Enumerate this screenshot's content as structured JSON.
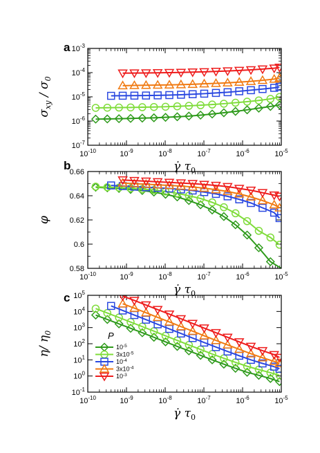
{
  "colors": {
    "p1e-5": "#2e9a1b",
    "p3e-5": "#7fdc3a",
    "p1e-4": "#2a48e0",
    "p3e-4": "#f07a12",
    "p1e-3": "#ee1c1c"
  },
  "chart_data": [
    {
      "panel": "a",
      "type": "line",
      "xscale": "log",
      "yscale": "log",
      "xlim": [
        1e-10,
        1e-05
      ],
      "ylim": [
        1e-07,
        0.001
      ],
      "xlabel": "γ̇ τ0",
      "ylabel": "σxy / σ0",
      "x_tick_labels": [
        "10-10",
        "10-9",
        "10-8",
        "10-7",
        "10-6",
        "10-5"
      ],
      "y_tick_labels": [
        "10-7",
        "10-6",
        "10-5",
        "10-4",
        "10-3"
      ],
      "series": [
        {
          "key": "p1e-5",
          "marker": "diamond",
          "x": [
            1.6e-10,
            3.2e-10,
            6.4e-10,
            1.28e-09,
            2.56e-09,
            5.12e-09,
            1.02e-08,
            2.05e-08,
            4.1e-08,
            8.2e-08,
            1.64e-07,
            3.28e-07,
            6.55e-07,
            1.31e-06,
            2.62e-06,
            5.24e-06,
            9e-06
          ],
          "y": [
            1.2e-06,
            1.22e-06,
            1.25e-06,
            1.28e-06,
            1.32e-06,
            1.36e-06,
            1.42e-06,
            1.5e-06,
            1.6e-06,
            1.75e-06,
            1.95e-06,
            2.2e-06,
            2.5e-06,
            2.9e-06,
            3.4e-06,
            4e-06,
            4.6e-06
          ]
        },
        {
          "key": "p3e-5",
          "marker": "circle",
          "x": [
            1.6e-10,
            3.2e-10,
            6.4e-10,
            1.28e-09,
            2.56e-09,
            5.12e-09,
            1.02e-08,
            2.05e-08,
            4.1e-08,
            8.2e-08,
            1.64e-07,
            3.28e-07,
            6.55e-07,
            1.31e-06,
            2.62e-06,
            5.24e-06,
            9e-06
          ],
          "y": [
            3.5e-06,
            3.55e-06,
            3.6e-06,
            3.65e-06,
            3.72e-06,
            3.8e-06,
            3.9e-06,
            4.05e-06,
            4.25e-06,
            4.5e-06,
            4.8e-06,
            5.2e-06,
            5.7e-06,
            6.3e-06,
            7.1e-06,
            8.2e-06,
            9.8e-06
          ]
        },
        {
          "key": "p1e-4",
          "marker": "square",
          "x": [
            4e-10,
            8e-10,
            1.6e-09,
            3.2e-09,
            6.4e-09,
            1.28e-08,
            2.56e-08,
            5.12e-08,
            1.02e-07,
            2.05e-07,
            4.1e-07,
            8.2e-07,
            1.64e-06,
            3.28e-06,
            6.55e-06,
            9e-06
          ],
          "y": [
            1.1e-05,
            1.11e-05,
            1.12e-05,
            1.13e-05,
            1.15e-05,
            1.18e-05,
            1.22e-05,
            1.28e-05,
            1.35e-05,
            1.45e-05,
            1.55e-05,
            1.7e-05,
            1.88e-05,
            2.1e-05,
            2.35e-05,
            2.6e-05
          ]
        },
        {
          "key": "p3e-4",
          "marker": "triangle-up",
          "x": [
            8e-10,
            1.6e-09,
            3.2e-09,
            6.4e-09,
            1.28e-08,
            2.56e-08,
            5.12e-08,
            1.02e-07,
            2.05e-07,
            4.1e-07,
            8.2e-07,
            1.64e-06,
            3.28e-06,
            6.55e-06,
            9e-06
          ],
          "y": [
            2.9e-05,
            2.95e-05,
            3e-05,
            3.05e-05,
            3.12e-05,
            3.2e-05,
            3.3e-05,
            3.45e-05,
            3.6e-05,
            3.8e-05,
            4.05e-05,
            4.35e-05,
            4.8e-05,
            5.4e-05,
            6e-05
          ]
        },
        {
          "key": "p1e-3",
          "marker": "triangle-down",
          "x": [
            8e-10,
            1.6e-09,
            3.2e-09,
            6.4e-09,
            1.28e-08,
            2.56e-08,
            5.12e-08,
            1.02e-07,
            2.05e-07,
            4.1e-07,
            8.2e-07,
            1.64e-06,
            3.28e-06,
            6.55e-06,
            9e-06
          ],
          "y": [
            9.5e-05,
            9.6e-05,
            9.7e-05,
            9.85e-05,
            0.0001,
            0.000102,
            0.000105,
            0.000108,
            0.000112,
            0.000117,
            0.000123,
            0.00013,
            0.00014,
            0.000152,
            0.000165
          ]
        }
      ]
    },
    {
      "panel": "b",
      "type": "line",
      "xscale": "log",
      "yscale": "linear",
      "xlim": [
        1e-10,
        1e-05
      ],
      "ylim": [
        0.58,
        0.66
      ],
      "xlabel": "γ̇ τ0",
      "ylabel": "φ",
      "x_tick_labels": [
        "10-10",
        "10-9",
        "10-8",
        "10-7",
        "10-6",
        "10-5"
      ],
      "y_tick_labels": [
        "0.58",
        "0.6",
        "0.62",
        "0.64",
        "0.66"
      ],
      "series": [
        {
          "key": "p1e-5",
          "marker": "diamond",
          "x": [
            1.6e-10,
            3.2e-10,
            6.4e-10,
            1.28e-09,
            2.56e-09,
            5.12e-09,
            1.02e-08,
            2.05e-08,
            4.1e-08,
            8.2e-08,
            1.64e-07,
            3.28e-07,
            6.55e-07,
            1.31e-06,
            2.62e-06,
            5.24e-06
          ],
          "y": [
            0.647,
            0.6465,
            0.646,
            0.6452,
            0.6443,
            0.643,
            0.6412,
            0.639,
            0.636,
            0.6325,
            0.6282,
            0.6228,
            0.616,
            0.6075,
            0.597,
            0.5855
          ],
          "line_end": [
            1e-05,
            0.58
          ]
        },
        {
          "key": "p3e-5",
          "marker": "circle",
          "x": [
            1.6e-10,
            3.2e-10,
            6.4e-10,
            1.28e-09,
            2.56e-09,
            5.12e-09,
            1.02e-08,
            2.05e-08,
            4.1e-08,
            8.2e-08,
            1.64e-07,
            3.28e-07,
            6.55e-07,
            1.31e-06,
            2.62e-06,
            5.24e-06,
            9e-06
          ],
          "y": [
            0.6475,
            0.647,
            0.6467,
            0.6462,
            0.6455,
            0.6447,
            0.6435,
            0.642,
            0.64,
            0.6377,
            0.6345,
            0.6305,
            0.6255,
            0.619,
            0.611,
            0.6055,
            0.5995
          ]
        },
        {
          "key": "p1e-4",
          "marker": "square",
          "x": [
            4e-10,
            8e-10,
            1.6e-09,
            3.2e-09,
            6.4e-09,
            1.28e-08,
            2.56e-08,
            5.12e-08,
            1.02e-07,
            2.05e-07,
            4.1e-07,
            8.2e-07,
            1.64e-06,
            3.28e-06,
            6.55e-06,
            9e-06
          ],
          "y": [
            0.6485,
            0.648,
            0.6475,
            0.647,
            0.6465,
            0.646,
            0.6452,
            0.6443,
            0.643,
            0.6415,
            0.6395,
            0.637,
            0.634,
            0.63,
            0.626,
            0.6215
          ]
        },
        {
          "key": "p3e-4",
          "marker": "triangle-up",
          "x": [
            8e-10,
            1.6e-09,
            3.2e-09,
            6.4e-09,
            1.28e-08,
            2.56e-08,
            5.12e-08,
            1.02e-07,
            2.05e-07,
            4.1e-07,
            8.2e-07,
            1.64e-06,
            3.28e-06,
            6.55e-06,
            9e-06
          ],
          "y": [
            0.6505,
            0.65,
            0.6495,
            0.649,
            0.6485,
            0.648,
            0.6472,
            0.6463,
            0.645,
            0.6435,
            0.6415,
            0.639,
            0.636,
            0.6325,
            0.63
          ]
        },
        {
          "key": "p1e-3",
          "marker": "triangle-down",
          "x": [
            8e-10,
            1.6e-09,
            3.2e-09,
            6.4e-09,
            1.28e-08,
            2.56e-08,
            5.12e-08,
            1.02e-07,
            2.05e-07,
            4.1e-07,
            8.2e-07,
            1.64e-06,
            3.28e-06,
            6.55e-06,
            9e-06
          ],
          "y": [
            0.653,
            0.6525,
            0.652,
            0.6515,
            0.651,
            0.6505,
            0.65,
            0.6493,
            0.6485,
            0.6475,
            0.646,
            0.6445,
            0.6425,
            0.6405,
            0.6395
          ]
        }
      ]
    },
    {
      "panel": "c",
      "type": "line",
      "xscale": "log",
      "yscale": "log",
      "xlim": [
        1e-10,
        1e-05
      ],
      "ylim": [
        0.1,
        100000
      ],
      "xlabel": "γ̇ τ0",
      "ylabel": "η/ η0",
      "x_tick_labels": [
        "10-10",
        "10-9",
        "10-8",
        "10-7",
        "10-6",
        "10-5"
      ],
      "y_tick_labels": [
        "10-1",
        "100",
        "101",
        "102",
        "103",
        "104",
        "105"
      ],
      "legend": {
        "title": "P",
        "placement": "left",
        "entries": [
          {
            "key": "p1e-5",
            "label": "10-5"
          },
          {
            "key": "p3e-5",
            "label": "3x10-5"
          },
          {
            "key": "p1e-4",
            "label": "10-4"
          },
          {
            "key": "p3e-4",
            "label": "3x10-4"
          },
          {
            "key": "p1e-3",
            "label": "10-3"
          }
        ]
      },
      "series": [
        {
          "key": "p1e-5",
          "marker": "diamond",
          "x": [
            1.6e-10,
            3.2e-10,
            6.4e-10,
            1.28e-09,
            2.56e-09,
            5.12e-09,
            1.02e-08,
            2.05e-08,
            4.1e-08,
            8.2e-08,
            1.64e-07,
            3.28e-07,
            6.55e-07,
            1.31e-06,
            2.62e-06,
            5.24e-06,
            9e-06
          ],
          "y": [
            6000,
            3200,
            1700,
            900,
            480,
            250,
            130,
            68,
            36,
            19,
            10,
            5.4,
            3.0,
            1.7,
            1.1,
            0.7,
            0.45
          ]
        },
        {
          "key": "p3e-5",
          "marker": "circle",
          "x": [
            1.6e-10,
            3.2e-10,
            6.4e-10,
            1.28e-09,
            2.56e-09,
            5.12e-09,
            1.02e-08,
            2.05e-08,
            4.1e-08,
            8.2e-08,
            1.64e-07,
            3.28e-07,
            6.55e-07,
            1.31e-06,
            2.62e-06,
            5.24e-06,
            9e-06
          ],
          "y": [
            15000,
            8000,
            4200,
            2200,
            1150,
            600,
            310,
            160,
            84,
            44,
            23,
            12.5,
            7,
            4,
            2.5,
            1.6,
            1.1
          ]
        },
        {
          "key": "p1e-4",
          "marker": "square",
          "x": [
            4e-10,
            8e-10,
            1.6e-09,
            3.2e-09,
            6.4e-09,
            1.28e-08,
            2.56e-08,
            5.12e-08,
            1.02e-07,
            2.05e-07,
            4.1e-07,
            8.2e-07,
            1.64e-06,
            3.28e-06,
            6.55e-06,
            9e-06
          ],
          "y": [
            22000,
            11500,
            6000,
            3100,
            1600,
            830,
            430,
            225,
            118,
            62,
            33,
            18,
            10,
            6,
            3.8,
            2.8
          ]
        },
        {
          "key": "p3e-4",
          "marker": "triangle-up",
          "x": [
            8e-10,
            1.6e-09,
            3.2e-09,
            6.4e-09,
            1.28e-08,
            2.56e-08,
            5.12e-08,
            1.02e-07,
            2.05e-07,
            4.1e-07,
            8.2e-07,
            1.64e-06,
            3.28e-06,
            6.55e-06,
            9e-06
          ],
          "y": [
            30000,
            16000,
            8300,
            4300,
            2250,
            1150,
            600,
            310,
            160,
            85,
            45,
            24,
            13.5,
            8,
            6
          ]
        },
        {
          "key": "p1e-3",
          "marker": "triangle-down",
          "x": [
            8e-10,
            1.6e-09,
            3.2e-09,
            6.4e-09,
            1.28e-08,
            2.56e-08,
            5.12e-08,
            1.02e-07,
            2.05e-07,
            4.1e-07,
            8.2e-07,
            1.64e-06,
            3.28e-06,
            6.55e-06,
            9e-06
          ],
          "y": [
            90000,
            48000,
            25000,
            13000,
            6800,
            3500,
            1800,
            930,
            480,
            250,
            130,
            68,
            37,
            21,
            14
          ]
        }
      ]
    }
  ]
}
